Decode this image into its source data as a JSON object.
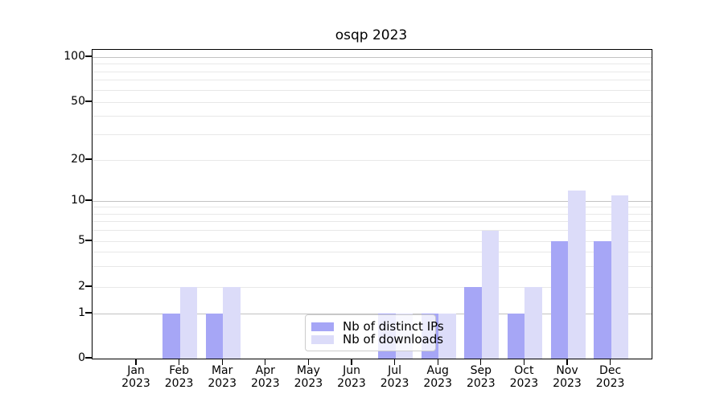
{
  "chart_data": {
    "type": "bar",
    "title": "osqp 2023",
    "categories": [
      "Jan",
      "Feb",
      "Mar",
      "Apr",
      "May",
      "Jun",
      "Jul",
      "Aug",
      "Sep",
      "Oct",
      "Nov",
      "Dec"
    ],
    "category_year": "2023",
    "series": [
      {
        "name": "Nb of distinct IPs",
        "color": "#a6a6f6",
        "values": [
          0,
          1,
          1,
          0,
          0,
          0,
          1,
          1,
          2,
          1,
          5,
          5
        ]
      },
      {
        "name": "Nb of downloads",
        "color": "#dcdcf9",
        "values": [
          0,
          2,
          2,
          0,
          0,
          0,
          1,
          1,
          6,
          2,
          12,
          11
        ]
      }
    ],
    "yaxis": {
      "scale": "symlog",
      "tick_values": [
        0,
        1,
        2,
        5,
        10,
        20,
        50,
        100
      ],
      "tick_labels": [
        "0",
        "1",
        "2",
        "5",
        "10",
        "20",
        "50",
        "100"
      ],
      "gridline_values": [
        1,
        2,
        3,
        4,
        5,
        6,
        7,
        8,
        9,
        10,
        20,
        30,
        40,
        50,
        60,
        70,
        80,
        90,
        100
      ],
      "major_gridline_values": [
        1,
        10,
        100
      ],
      "ylim": [
        0,
        115
      ]
    },
    "xaxis": {
      "year_row": true
    },
    "legend": {
      "entries": [
        {
          "label": "Nb of distinct IPs",
          "color": "#a6a6f6"
        },
        {
          "label": "Nb of downloads",
          "color": "#dcdcf9"
        }
      ],
      "location": "lower center"
    },
    "colors": {
      "grid_minor": "#e8e8e8",
      "grid_major": "#c2c2c2",
      "axis": "#000000",
      "background": "#ffffff"
    }
  }
}
